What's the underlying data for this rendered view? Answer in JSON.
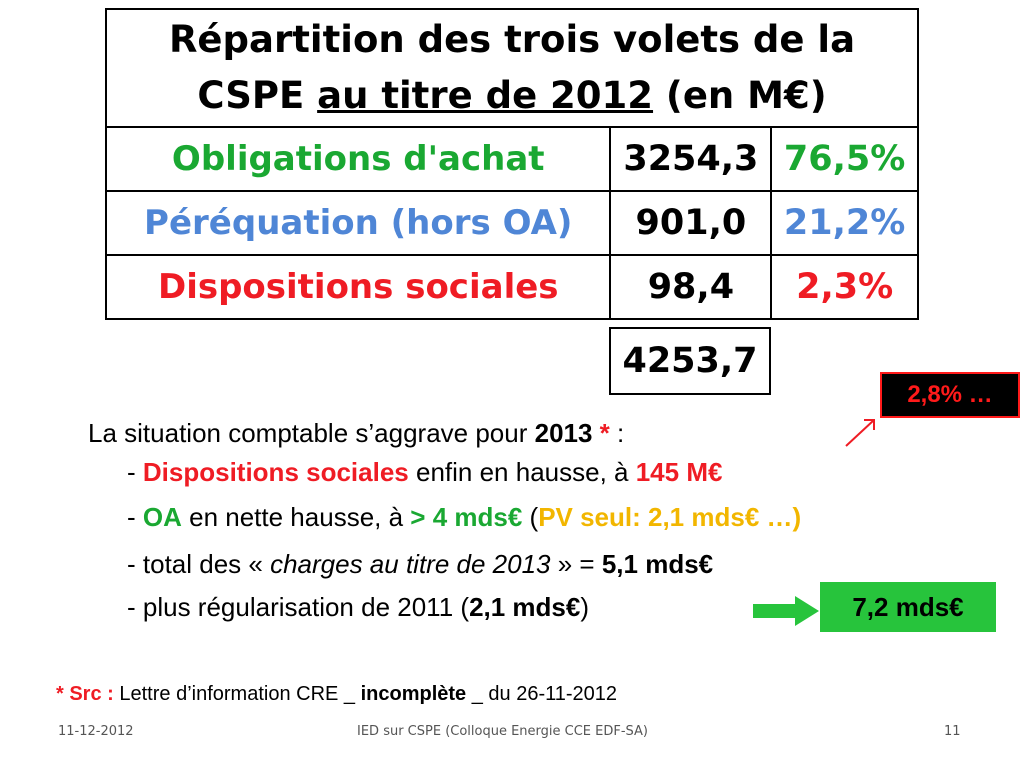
{
  "table": {
    "title_line1": "Répartition des trois volets de la",
    "title_line2a": "CSPE ",
    "title_line2_underlined": "au titre de 2012",
    "title_line2b": " (en M€)",
    "rows": [
      {
        "label": "Obligations d'achat",
        "value": "3254,3",
        "pct": "76,5%",
        "color": "#1aa832"
      },
      {
        "label": "Péréquation (hors OA)",
        "value": "901,0",
        "pct": "21,2%",
        "color": "#4f86d6"
      },
      {
        "label": "Dispositions sociales",
        "value": "98,4",
        "pct": "2,3%",
        "color": "#ef1c24"
      }
    ],
    "total": "4253,7"
  },
  "badge": "2,8% …",
  "lines": {
    "l1_a": "La situation comptable s’aggrave pour ",
    "l1_year": "2013",
    "l1_star": " *",
    "l1_end": " :",
    "l2_dash": "- ",
    "l2_red": "Dispositions sociales",
    "l2_mid": " enfin en hausse, à ",
    "l2_val": "145 M€",
    "l3_dash": "- ",
    "l3_oa": "OA",
    "l3_mid": " en nette hausse, à ",
    "l3_val": "> 4 mds€",
    "l3_paren_open": " (",
    "l3_pv": "PV seul: 2,1 mds€ …",
    "l3_paren_close": ")",
    "l4_a": "- total des « ",
    "l4_italic": "charges au titre de 2013",
    "l4_b": " » = ",
    "l4_val": "5,1 mds€",
    "l5_a": "- plus régularisation de 2011 (",
    "l5_val": "2,1 mds€",
    "l5_b": ")"
  },
  "result": "7,2 mds€",
  "source": {
    "prefix": "* Src :",
    "text_a": " Lettre d’information CRE _ ",
    "bold": "incomplète",
    "text_b": " _ du 26-11-2012"
  },
  "footer": {
    "date": "11-12-2012",
    "center": "IED sur CSPE (Colloque Energie CCE EDF-SA)",
    "page": "11"
  }
}
